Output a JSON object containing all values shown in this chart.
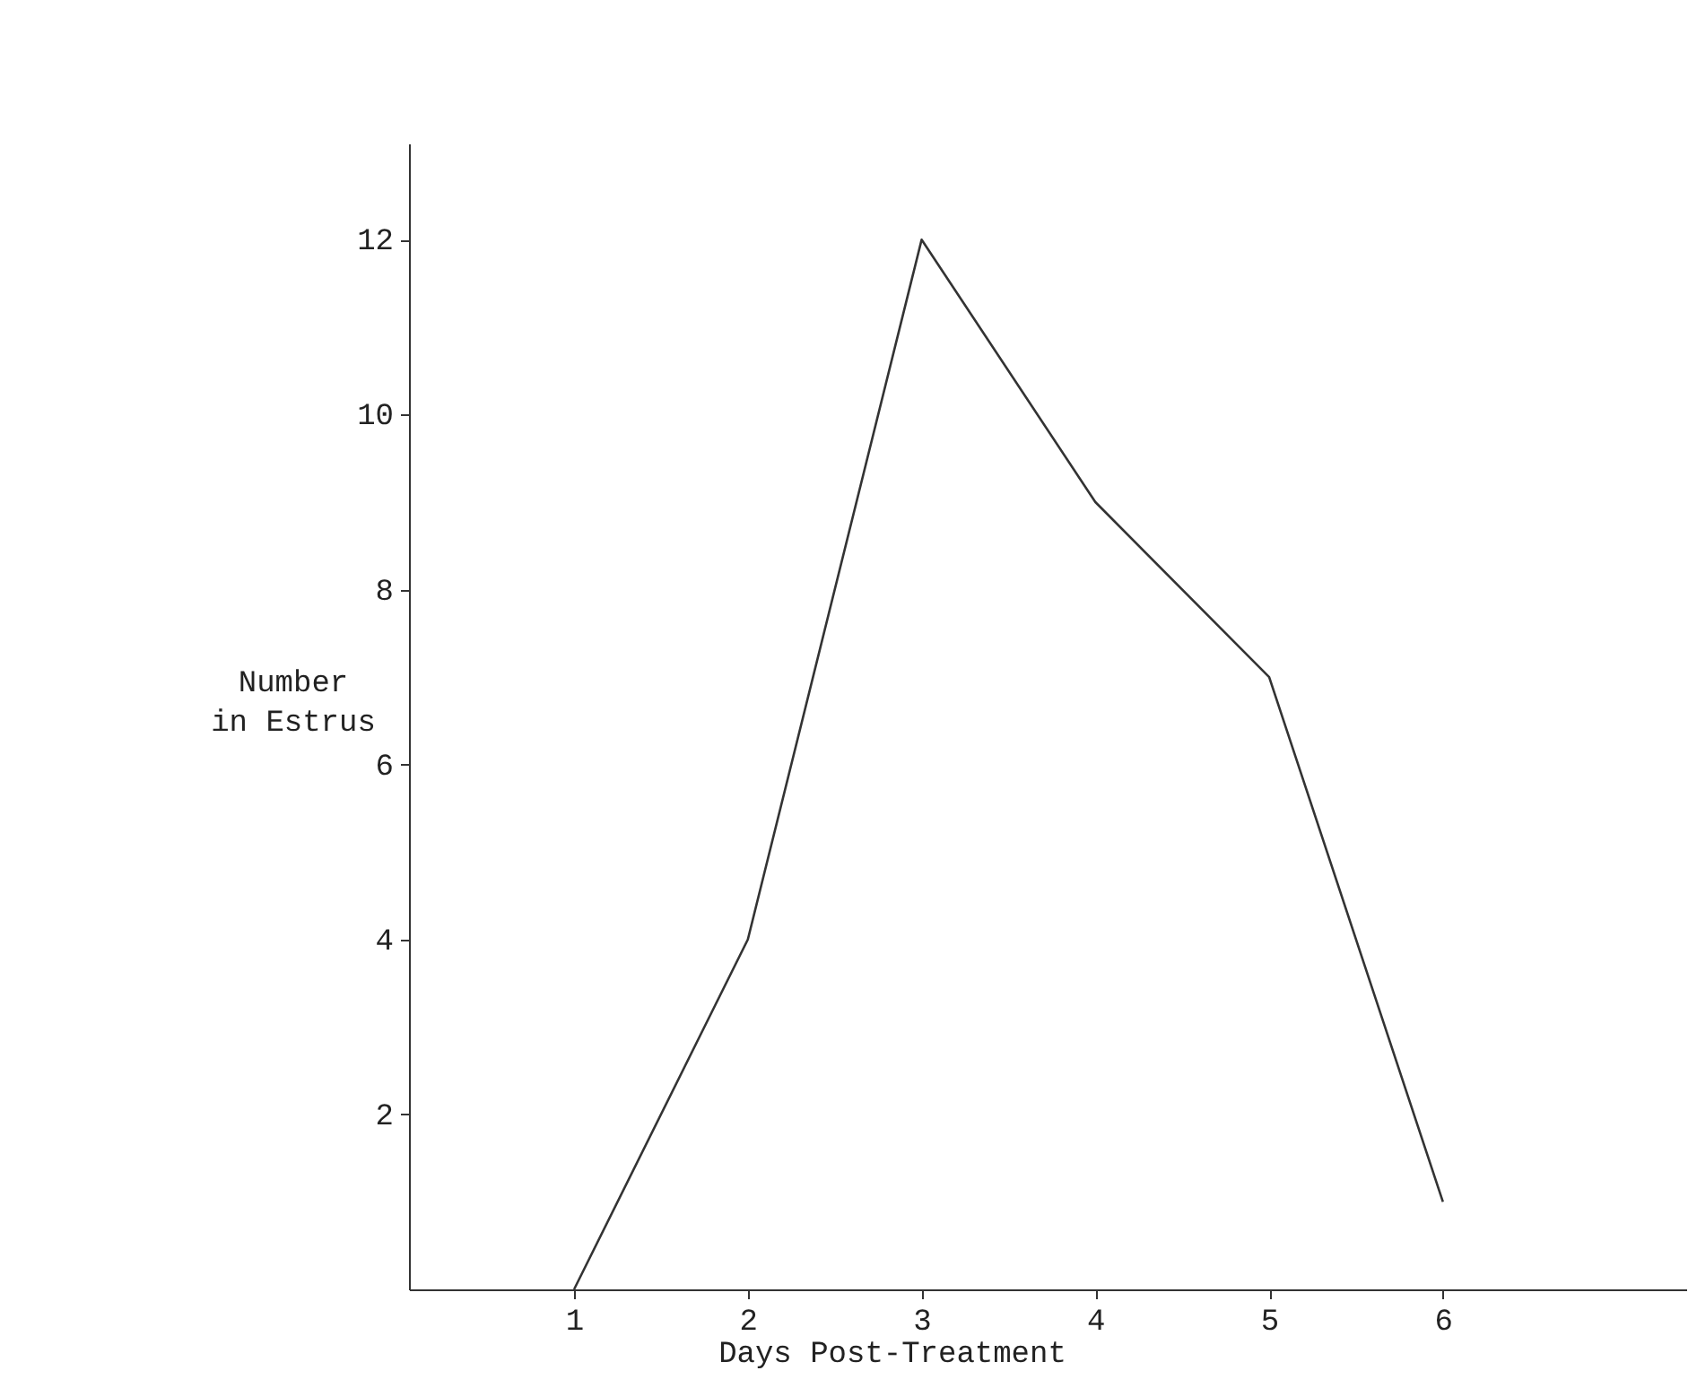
{
  "chart_data": {
    "type": "line",
    "xlabel": "Days Post-Treatment",
    "ylabel": "Number\nin Estrus",
    "x": [
      1,
      2,
      3,
      4,
      5,
      6
    ],
    "series": [
      {
        "color": "#333333",
        "values": [
          0,
          4,
          12,
          9,
          7,
          1
        ]
      }
    ],
    "xlim": [
      0.05,
      7.4
    ],
    "xticks": [
      1,
      2,
      3,
      4,
      5,
      6
    ],
    "ylim": [
      0,
      13.1
    ],
    "yticks": [
      2,
      4,
      6,
      8,
      10,
      12
    ],
    "grid": false,
    "marker": "none",
    "line_style": "solid"
  }
}
